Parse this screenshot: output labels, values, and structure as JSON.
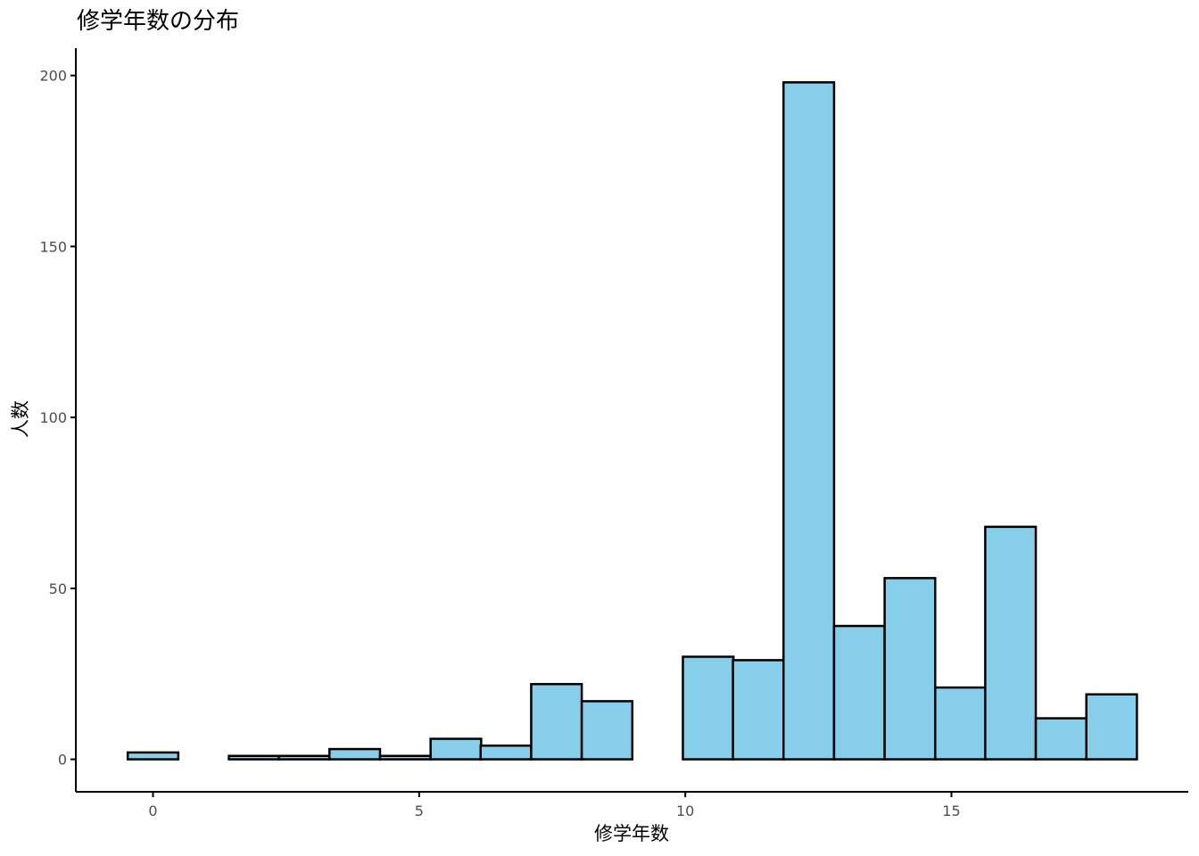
{
  "chart_data": {
    "type": "bar",
    "title": "修学年数の分布",
    "xlabel": "修学年数",
    "ylabel": "人数",
    "bin_width": 0.95,
    "bin_centers": [
      0,
      0.95,
      1.9,
      2.84,
      3.79,
      4.74,
      5.69,
      6.63,
      7.58,
      8.53,
      9.48,
      10.43,
      11.37,
      12.32,
      13.27,
      14.22,
      15.17,
      16.11,
      17.06,
      18.01
    ],
    "values": [
      2,
      0,
      1,
      1,
      3,
      1,
      6,
      4,
      22,
      17,
      0,
      30,
      29,
      198,
      39,
      53,
      21,
      68,
      12,
      19
    ],
    "xlim": [
      -1.45,
      19.45
    ],
    "ylim": [
      -9.5,
      208
    ],
    "xticks": [
      0,
      5,
      10,
      15
    ],
    "xtick_labels": [
      "0",
      "5",
      "10",
      "15"
    ],
    "yticks": [
      0,
      50,
      100,
      150,
      200
    ],
    "ytick_labels": [
      "0",
      "50",
      "100",
      "150",
      "200"
    ],
    "grid": false,
    "bar_fill": "#87ceeb",
    "bar_outline": "#000000"
  }
}
